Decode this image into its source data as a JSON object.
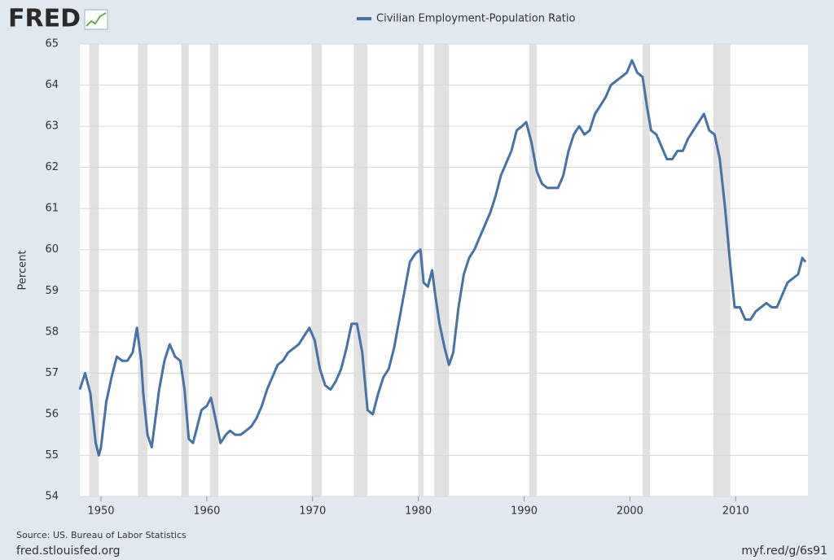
{
  "chart_data": {
    "type": "line",
    "logo": "FRED",
    "ylabel": "Percent",
    "source": "Source: US. Bureau of Labor Statistics",
    "site": "fred.stlouisfed.org",
    "short_url": "myf.red/g/6s91",
    "xlim": [
      1948,
      2016.83
    ],
    "xticks": [
      1950,
      1960,
      1970,
      1980,
      1990,
      2000,
      2010
    ],
    "ylim": [
      54,
      65
    ],
    "yticks": [
      54,
      55,
      56,
      57,
      58,
      59,
      60,
      61,
      62,
      63,
      64,
      65
    ],
    "grid": true,
    "legend": "top",
    "recession_color": "#e1e1e1",
    "recessions": [
      [
        1948.9,
        1949.8
      ],
      [
        1953.5,
        1954.4
      ],
      [
        1957.6,
        1958.3
      ],
      [
        1960.3,
        1961.1
      ],
      [
        1969.9,
        1970.9
      ],
      [
        1973.9,
        1975.2
      ],
      [
        1980.0,
        1980.5
      ],
      [
        1981.5,
        1982.9
      ],
      [
        1990.5,
        1991.2
      ],
      [
        2001.2,
        2001.9
      ],
      [
        2007.9,
        2009.5
      ]
    ],
    "x": [
      1948.0,
      1948.5,
      1949.0,
      1949.5,
      1949.8,
      1950.0,
      1950.5,
      1951.0,
      1951.5,
      1952.0,
      1952.5,
      1953.0,
      1953.4,
      1953.8,
      1954.0,
      1954.4,
      1954.8,
      1955.0,
      1955.5,
      1956.0,
      1956.5,
      1957.0,
      1957.5,
      1957.9,
      1958.3,
      1958.7,
      1959.0,
      1959.5,
      1960.0,
      1960.4,
      1960.9,
      1961.3,
      1961.8,
      1962.2,
      1962.7,
      1963.2,
      1963.7,
      1964.2,
      1964.7,
      1965.2,
      1965.7,
      1966.2,
      1966.7,
      1967.2,
      1967.7,
      1968.2,
      1968.7,
      1969.2,
      1969.7,
      1970.2,
      1970.7,
      1971.2,
      1971.7,
      1972.2,
      1972.7,
      1973.2,
      1973.7,
      1974.2,
      1974.7,
      1975.2,
      1975.7,
      1976.2,
      1976.7,
      1977.2,
      1977.7,
      1978.2,
      1978.7,
      1979.2,
      1979.7,
      1980.2,
      1980.5,
      1980.9,
      1981.3,
      1981.6,
      1982.0,
      1982.5,
      1982.9,
      1983.3,
      1983.8,
      1984.3,
      1984.8,
      1985.3,
      1985.8,
      1986.3,
      1986.8,
      1987.3,
      1987.8,
      1988.3,
      1988.8,
      1989.3,
      1989.8,
      1990.2,
      1990.7,
      1991.2,
      1991.7,
      1992.2,
      1992.7,
      1993.2,
      1993.7,
      1994.2,
      1994.7,
      1995.2,
      1995.7,
      1996.2,
      1996.7,
      1997.2,
      1997.7,
      1998.2,
      1998.7,
      1999.2,
      1999.7,
      2000.2,
      2000.7,
      2001.2,
      2001.6,
      2002.0,
      2002.5,
      2003.0,
      2003.5,
      2004.0,
      2004.5,
      2005.0,
      2005.5,
      2006.0,
      2006.5,
      2007.0,
      2007.5,
      2008.0,
      2008.5,
      2009.0,
      2009.5,
      2009.9,
      2010.4,
      2010.9,
      2011.4,
      2011.9,
      2012.4,
      2012.9,
      2013.4,
      2013.9,
      2014.4,
      2014.9,
      2015.4,
      2015.9,
      2016.3,
      2016.6
    ],
    "series": [
      {
        "name": "Civilian Employment-Population Ratio",
        "color": "#4572a7",
        "values": [
          56.6,
          57.0,
          56.5,
          55.3,
          55.0,
          55.2,
          56.3,
          56.9,
          57.4,
          57.3,
          57.3,
          57.5,
          58.1,
          57.3,
          56.5,
          55.5,
          55.2,
          55.6,
          56.6,
          57.3,
          57.7,
          57.4,
          57.3,
          56.6,
          55.4,
          55.3,
          55.6,
          56.1,
          56.2,
          56.4,
          55.8,
          55.3,
          55.5,
          55.6,
          55.5,
          55.5,
          55.6,
          55.7,
          55.9,
          56.2,
          56.6,
          56.9,
          57.2,
          57.3,
          57.5,
          57.6,
          57.7,
          57.9,
          58.1,
          57.8,
          57.1,
          56.7,
          56.6,
          56.8,
          57.1,
          57.6,
          58.2,
          58.2,
          57.5,
          56.1,
          56.0,
          56.5,
          56.9,
          57.1,
          57.6,
          58.3,
          59.0,
          59.7,
          59.9,
          60.0,
          59.2,
          59.1,
          59.5,
          58.9,
          58.2,
          57.6,
          57.2,
          57.5,
          58.6,
          59.4,
          59.8,
          60.0,
          60.3,
          60.6,
          60.9,
          61.3,
          61.8,
          62.1,
          62.4,
          62.9,
          63.0,
          63.1,
          62.6,
          61.9,
          61.6,
          61.5,
          61.5,
          61.5,
          61.8,
          62.4,
          62.8,
          63.0,
          62.8,
          62.9,
          63.3,
          63.5,
          63.7,
          64.0,
          64.1,
          64.2,
          64.3,
          64.6,
          64.3,
          64.2,
          63.5,
          62.9,
          62.8,
          62.5,
          62.2,
          62.2,
          62.4,
          62.4,
          62.7,
          62.9,
          63.1,
          63.3,
          62.9,
          62.8,
          62.2,
          61.0,
          59.6,
          58.6,
          58.6,
          58.3,
          58.3,
          58.5,
          58.6,
          58.7,
          58.6,
          58.6,
          58.9,
          59.2,
          59.3,
          59.4,
          59.8,
          59.7
        ]
      }
    ]
  }
}
